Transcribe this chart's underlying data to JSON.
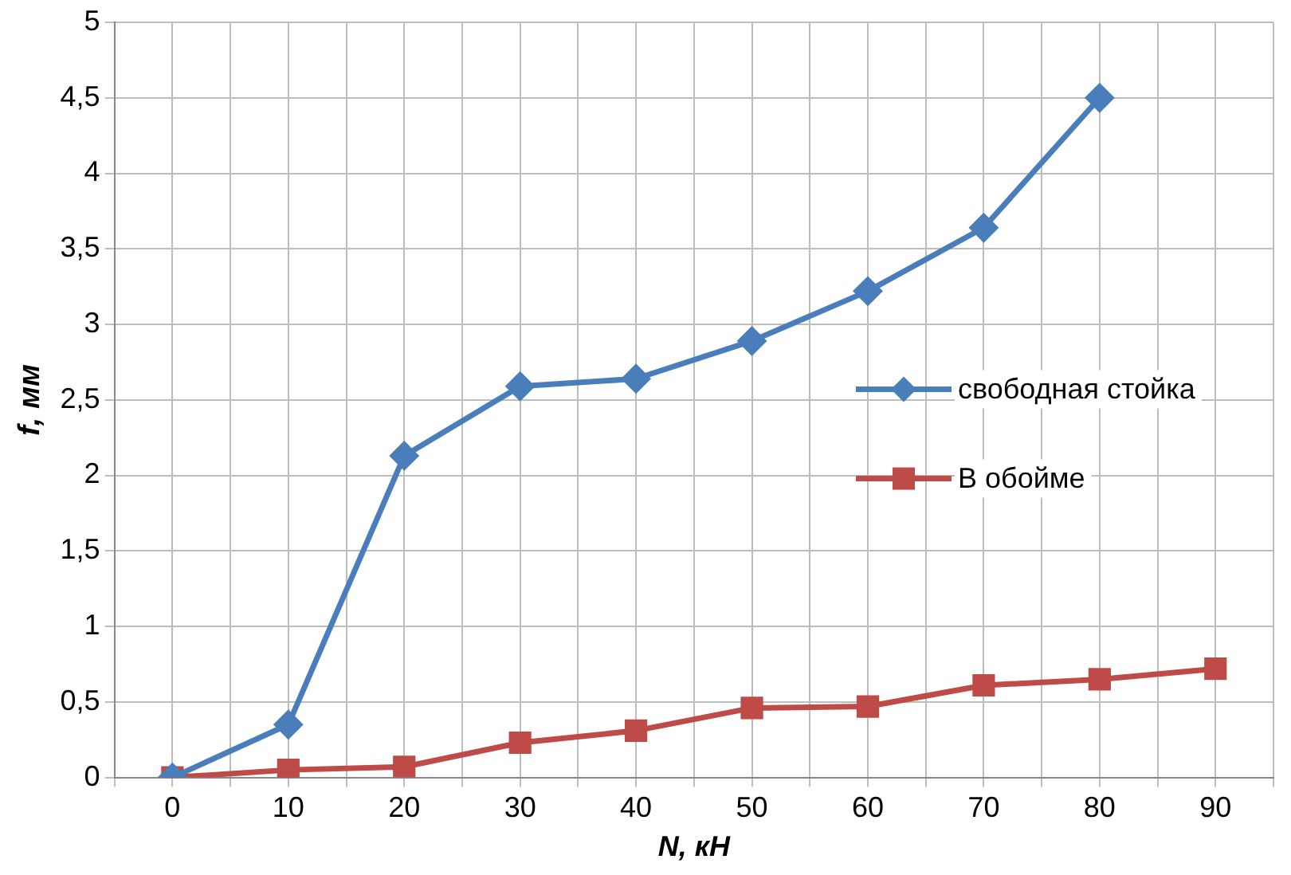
{
  "chart_data": {
    "type": "line",
    "xlabel": "N, кН",
    "ylabel": "f, мм",
    "x": [
      0,
      10,
      20,
      30,
      40,
      50,
      60,
      70,
      80,
      90
    ],
    "xlim": [
      -5,
      95
    ],
    "xticks": [
      {
        "value": -5,
        "label": null
      },
      0,
      {
        "value": 5,
        "label": null
      },
      10,
      {
        "value": 15,
        "label": null
      },
      20,
      {
        "value": 25,
        "label": null
      },
      30,
      {
        "value": 35,
        "label": null
      },
      40,
      {
        "value": 45,
        "label": null
      },
      50,
      {
        "value": 55,
        "label": null
      },
      60,
      {
        "value": 65,
        "label": null
      },
      70,
      {
        "value": 75,
        "label": null
      },
      80,
      {
        "value": 85,
        "label": null
      },
      90,
      {
        "value": 95,
        "label": null
      }
    ],
    "ylim": [
      0,
      5
    ],
    "yticks": [
      0,
      {
        "value": 0.5,
        "label": "0,5"
      },
      1,
      {
        "value": 1.5,
        "label": "1,5"
      },
      2,
      {
        "value": 2.5,
        "label": "2,5"
      },
      3,
      {
        "value": 3.5,
        "label": "3,5"
      },
      4,
      {
        "value": 4.5,
        "label": "4,5"
      },
      5
    ],
    "grid": true,
    "legend": "right",
    "series": [
      {
        "name": "свободная стойка",
        "color": "#4a7ebb",
        "marker": "diamond",
        "values": [
          0,
          0.35,
          2.13,
          2.59,
          2.64,
          2.89,
          3.22,
          3.64,
          4.5,
          null
        ]
      },
      {
        "name": "В обойме",
        "color": "#be4b48",
        "marker": "square",
        "values": [
          0,
          0.05,
          0.07,
          0.23,
          0.31,
          0.46,
          0.47,
          0.61,
          0.65,
          0.72
        ]
      }
    ]
  }
}
